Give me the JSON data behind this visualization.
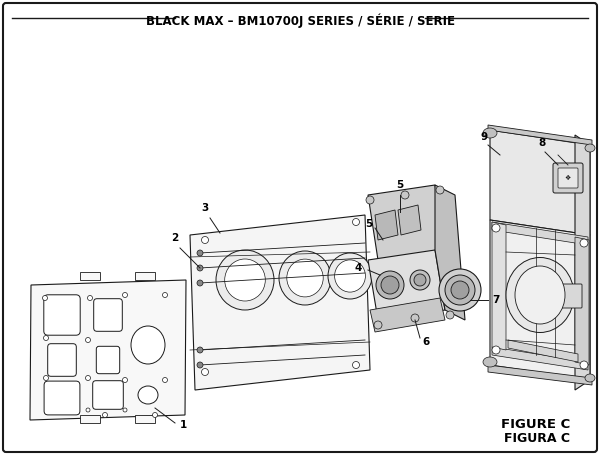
{
  "title": "BLACK MAX – BM10700J SERIES / SÉRIE / SERIE",
  "figure_label": "FIGURE C",
  "figura_label": "FIGURA C",
  "bg_color": "#ffffff",
  "border_color": "#1a1a1a",
  "line_color": "#1a1a1a",
  "title_fontsize": 8.5,
  "fig_label_fontsize": 9.5
}
